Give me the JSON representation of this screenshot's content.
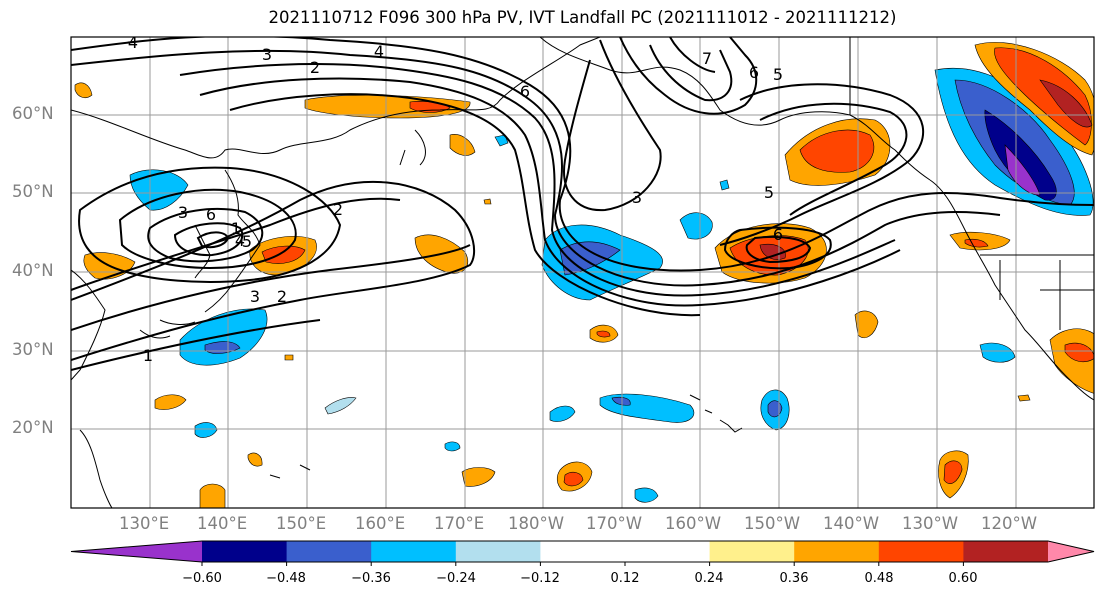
{
  "title": "2021110712 F096 300 hPa PV, IVT Landfall PC (2021111012 - 2021111212)",
  "lat_labels": [
    "60°N",
    "50°N",
    "40°N",
    "30°N",
    "20°N"
  ],
  "lon_labels": [
    "130°E",
    "140°E",
    "150°E",
    "160°E",
    "170°E",
    "180°W",
    "170°W",
    "160°W",
    "150°W",
    "140°W",
    "130°W",
    "120°W"
  ],
  "colorbar": {
    "colors": [
      "#9932cc",
      "#00008b",
      "#3a5fcd",
      "#00bfff",
      "#b2dfee",
      "#ffffff",
      "#ffffff",
      "#fff08c",
      "#ffa500",
      "#ff4500",
      "#b22222",
      "#ff88aa"
    ],
    "tick_labels": [
      "−0.60",
      "−0.48",
      "−0.36",
      "−0.24",
      "−0.12",
      "0.12",
      "0.24",
      "0.36",
      "0.48",
      "0.60"
    ]
  },
  "contour_labels": [
    "4",
    "3",
    "4",
    "2",
    "7",
    "6",
    "5",
    "6",
    "3",
    "5",
    "6",
    "3",
    "2",
    "6",
    "5",
    "4",
    "1",
    "3",
    "2",
    "1"
  ]
}
